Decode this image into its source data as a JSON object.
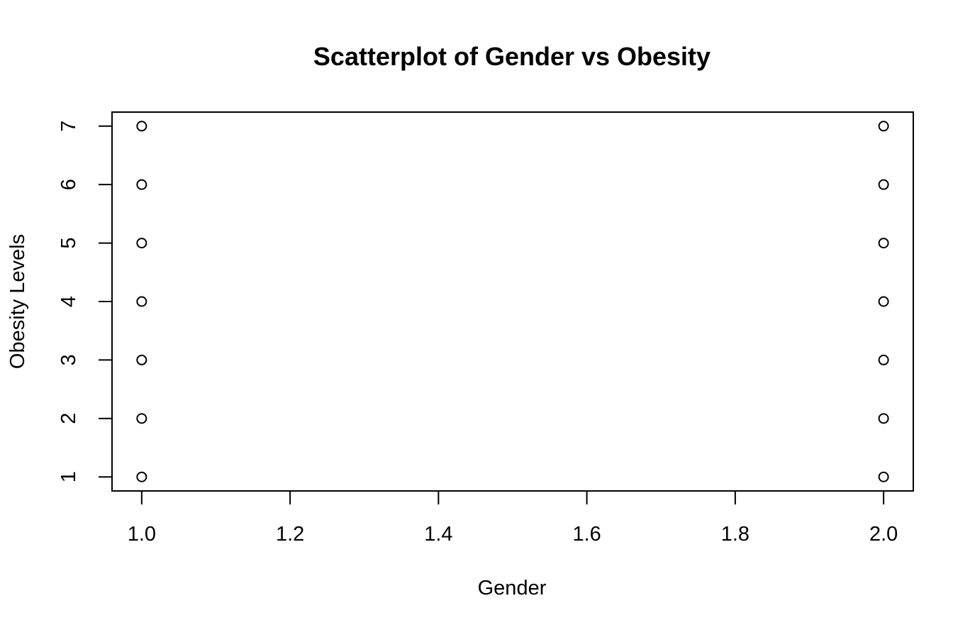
{
  "chart_data": {
    "type": "scatter",
    "title": "Scatterplot of Gender vs Obesity",
    "xlabel": "Gender",
    "ylabel": "Obesity Levels",
    "xlim": [
      0.96,
      2.04
    ],
    "ylim": [
      0.76,
      7.24
    ],
    "x_ticks": [
      1.0,
      1.2,
      1.4,
      1.6,
      1.8,
      2.0
    ],
    "x_tick_labels": [
      "1.0",
      "1.2",
      "1.4",
      "1.6",
      "1.8",
      "2.0"
    ],
    "y_ticks": [
      1,
      2,
      3,
      4,
      5,
      6,
      7
    ],
    "y_tick_labels": [
      "1",
      "2",
      "3",
      "4",
      "5",
      "6",
      "7"
    ],
    "grid": false,
    "legend": "none",
    "marker": "open-circle",
    "points": [
      {
        "x": 1,
        "y": 1
      },
      {
        "x": 1,
        "y": 2
      },
      {
        "x": 1,
        "y": 3
      },
      {
        "x": 1,
        "y": 4
      },
      {
        "x": 1,
        "y": 5
      },
      {
        "x": 1,
        "y": 6
      },
      {
        "x": 1,
        "y": 7
      },
      {
        "x": 2,
        "y": 1
      },
      {
        "x": 2,
        "y": 2
      },
      {
        "x": 2,
        "y": 3
      },
      {
        "x": 2,
        "y": 4
      },
      {
        "x": 2,
        "y": 5
      },
      {
        "x": 2,
        "y": 6
      },
      {
        "x": 2,
        "y": 7
      }
    ]
  }
}
